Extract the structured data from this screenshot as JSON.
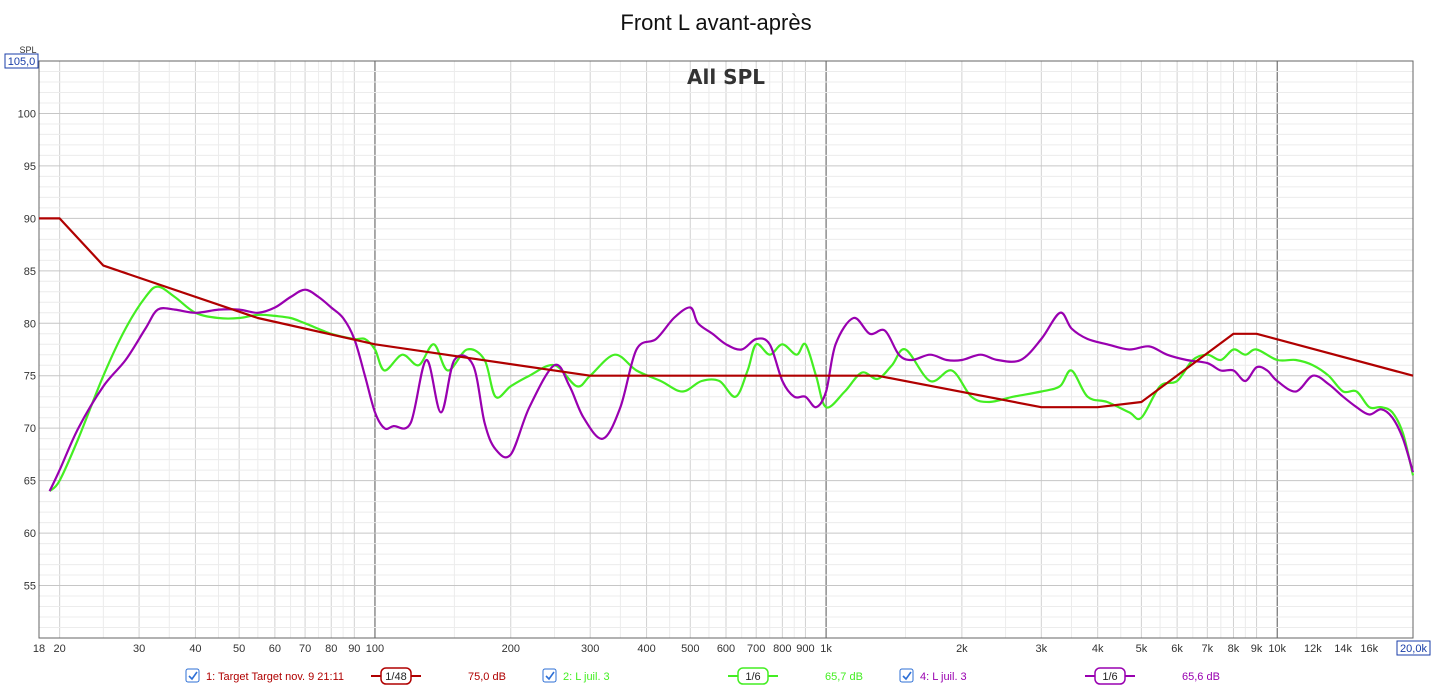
{
  "chart_data": {
    "type": "line",
    "title": "Front L avant-après",
    "subtitle": "All SPL",
    "ylabel": "SPL",
    "x_scale": "log",
    "xlim": [
      18,
      20000
    ],
    "ylim": [
      50,
      105
    ],
    "grid": true,
    "y_top_box": "105,0",
    "x_right_box": "20,0k",
    "y_ticks": [
      {
        "v": 55,
        "label": "55"
      },
      {
        "v": 60,
        "label": "60"
      },
      {
        "v": 65,
        "label": "65"
      },
      {
        "v": 70,
        "label": "70"
      },
      {
        "v": 75,
        "label": "75"
      },
      {
        "v": 80,
        "label": "80"
      },
      {
        "v": 85,
        "label": "85"
      },
      {
        "v": 90,
        "label": "90"
      },
      {
        "v": 95,
        "label": "95"
      },
      {
        "v": 100,
        "label": "100"
      }
    ],
    "x_ticks": [
      {
        "v": 18,
        "label": "18"
      },
      {
        "v": 20,
        "label": "20"
      },
      {
        "v": 30,
        "label": "30"
      },
      {
        "v": 40,
        "label": "40"
      },
      {
        "v": 50,
        "label": "50"
      },
      {
        "v": 60,
        "label": "60"
      },
      {
        "v": 70,
        "label": "70"
      },
      {
        "v": 80,
        "label": "80"
      },
      {
        "v": 90,
        "label": "90"
      },
      {
        "v": 100,
        "label": "100"
      },
      {
        "v": 200,
        "label": "200"
      },
      {
        "v": 300,
        "label": "300"
      },
      {
        "v": 400,
        "label": "400"
      },
      {
        "v": 500,
        "label": "500"
      },
      {
        "v": 600,
        "label": "600"
      },
      {
        "v": 700,
        "label": "700"
      },
      {
        "v": 800,
        "label": "800"
      },
      {
        "v": 900,
        "label": "900"
      },
      {
        "v": 1000,
        "label": "1k"
      },
      {
        "v": 2000,
        "label": "2k"
      },
      {
        "v": 3000,
        "label": "3k"
      },
      {
        "v": 4000,
        "label": "4k"
      },
      {
        "v": 5000,
        "label": "5k"
      },
      {
        "v": 6000,
        "label": "6k"
      },
      {
        "v": 7000,
        "label": "7k"
      },
      {
        "v": 8000,
        "label": "8k"
      },
      {
        "v": 9000,
        "label": "9k"
      },
      {
        "v": 10000,
        "label": "10k"
      },
      {
        "v": 12000,
        "label": "12k"
      },
      {
        "v": 14000,
        "label": "14k"
      },
      {
        "v": 16000,
        "label": "16k"
      }
    ],
    "series": [
      {
        "name": "1: Target Target nov. 9 21:11",
        "smoothing": "1/48",
        "level": "75,0 dB",
        "color": "#b00000",
        "x": [
          18,
          20,
          25,
          55,
          100,
          300,
          1000,
          1300,
          3000,
          4000,
          5000,
          8000,
          9000,
          20000
        ],
        "y": [
          90,
          90,
          85.5,
          80.5,
          78,
          75,
          75,
          75,
          72,
          72,
          72.5,
          79,
          79,
          75
        ]
      },
      {
        "name": "2: L juil. 3",
        "smoothing": "1/6",
        "level": "65,7 dB",
        "color": "#44ee22",
        "x": [
          19,
          20,
          22,
          25,
          28,
          31,
          33,
          36,
          40,
          45,
          50,
          55,
          60,
          65,
          70,
          80,
          90,
          95,
          100,
          105,
          115,
          125,
          135,
          145,
          160,
          175,
          185,
          200,
          220,
          250,
          280,
          300,
          340,
          380,
          430,
          480,
          530,
          580,
          630,
          670,
          700,
          750,
          800,
          860,
          900,
          950,
          1000,
          1100,
          1200,
          1300,
          1400,
          1500,
          1700,
          1900,
          2100,
          2300,
          2600,
          3000,
          3300,
          3500,
          3800,
          4200,
          4700,
          5000,
          5500,
          6000,
          6500,
          7000,
          7500,
          8000,
          8500,
          9000,
          10000,
          11000,
          12000,
          13000,
          14000,
          15000,
          16000,
          17000,
          18000,
          19000,
          20000
        ],
        "y": [
          64,
          65,
          69,
          75,
          79.5,
          82.5,
          83.5,
          82.5,
          81,
          80.5,
          80.5,
          80.8,
          80.7,
          80.5,
          80,
          79,
          78.5,
          78.5,
          77.5,
          75.5,
          77,
          76,
          78,
          75.5,
          77.5,
          76.5,
          73,
          74,
          75,
          76,
          74,
          75,
          77,
          75.5,
          74.5,
          73.5,
          74.5,
          74.5,
          73,
          75.5,
          78,
          77,
          78,
          77,
          78,
          75,
          72,
          73.5,
          75.3,
          74.7,
          76,
          77.5,
          74.5,
          75.5,
          73,
          72.5,
          73,
          73.5,
          74,
          75.5,
          73,
          72.5,
          71.5,
          71,
          74,
          74.5,
          76.5,
          77,
          76.5,
          77.5,
          77,
          77.5,
          76.5,
          76.5,
          76,
          75,
          73.5,
          73.5,
          72,
          72,
          71.5,
          69.5,
          65.5
        ]
      },
      {
        "name": "4: L juil. 3",
        "smoothing": "1/6",
        "level": "65,6 dB",
        "color": "#9900b0",
        "x": [
          19,
          20,
          22,
          25,
          28,
          31,
          33,
          36,
          40,
          45,
          50,
          55,
          60,
          65,
          70,
          75,
          80,
          85,
          90,
          95,
          100,
          105,
          110,
          120,
          130,
          140,
          150,
          165,
          175,
          185,
          200,
          220,
          250,
          270,
          290,
          320,
          350,
          380,
          420,
          460,
          500,
          520,
          560,
          600,
          650,
          700,
          750,
          800,
          850,
          900,
          950,
          1000,
          1050,
          1150,
          1250,
          1350,
          1450,
          1550,
          1700,
          1850,
          2000,
          2200,
          2400,
          2700,
          3000,
          3300,
          3500,
          3800,
          4200,
          4700,
          5200,
          5700,
          6300,
          7000,
          7500,
          8000,
          8500,
          9000,
          9500,
          10000,
          11000,
          12000,
          13000,
          14000,
          15000,
          16000,
          17000,
          18000,
          19000,
          20000
        ],
        "y": [
          64,
          66,
          70,
          74,
          76.5,
          79.5,
          81.3,
          81.3,
          81,
          81.3,
          81.3,
          81,
          81.5,
          82.5,
          83.2,
          82.5,
          81.5,
          80.5,
          78.5,
          75,
          71.5,
          70,
          70.2,
          70.5,
          76.5,
          71.5,
          76.5,
          76,
          70.5,
          68,
          67.5,
          72,
          76,
          74,
          71,
          69,
          72,
          77.5,
          78.5,
          80.5,
          81.5,
          80,
          79,
          78,
          77.5,
          78.5,
          78,
          74.5,
          73,
          73,
          72,
          73.5,
          78,
          80.5,
          79,
          79.3,
          77,
          76.5,
          77,
          76.5,
          76.5,
          77,
          76.5,
          76.5,
          78.5,
          81,
          79.5,
          78.5,
          78,
          77.5,
          77.8,
          77,
          76.5,
          76.2,
          75.5,
          75.5,
          74.5,
          75.8,
          75.5,
          74.5,
          73.5,
          75,
          74.2,
          73,
          72,
          71.3,
          71.8,
          71,
          69,
          65.8
        ]
      }
    ]
  }
}
